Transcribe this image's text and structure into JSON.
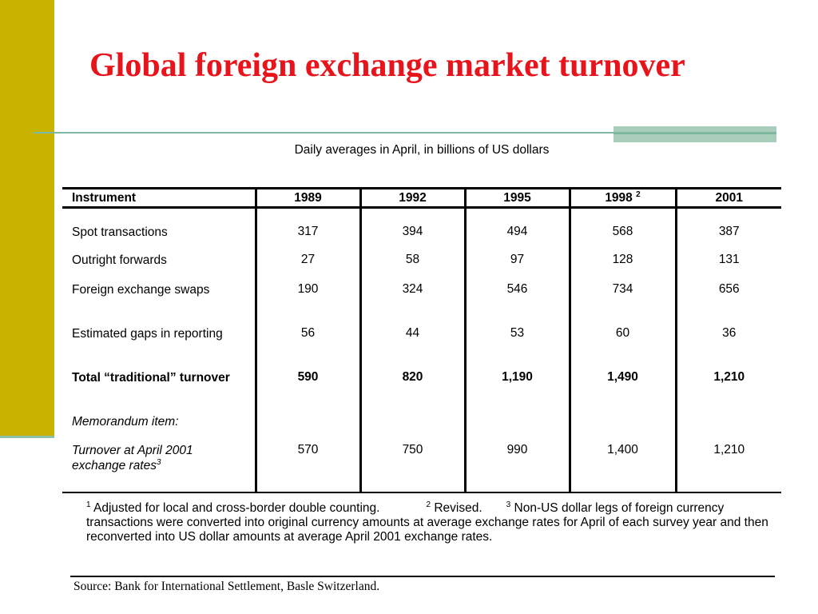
{
  "slide": {
    "title": "Global foreign exchange market turnover",
    "subtitle": "Daily averages in April, in billions of US dollars",
    "accent_color": "#e8141c",
    "bar_color": "#c8b400",
    "rule_color": "#7fb8a0"
  },
  "table": {
    "header": {
      "instrument": "Instrument",
      "years": [
        "1989",
        "1992",
        "1995",
        "1998",
        "2001"
      ],
      "sup_1998": "2"
    },
    "rows": [
      {
        "label": "Spot transactions",
        "values": [
          "317",
          "394",
          "494",
          "568",
          "387"
        ]
      },
      {
        "label": "Outright forwards",
        "values": [
          "27",
          "58",
          "97",
          "128",
          "131"
        ]
      },
      {
        "label": "Foreign exchange swaps",
        "values": [
          "190",
          "324",
          "546",
          "734",
          "656"
        ]
      },
      {
        "label": "Estimated gaps in reporting",
        "values": [
          "56",
          "44",
          "53",
          "60",
          "36"
        ]
      },
      {
        "label": "Total “traditional” turnover",
        "values": [
          "590",
          "820",
          "1,190",
          "1,490",
          "1,210"
        ]
      },
      {
        "label": "Memorandum item:",
        "values": [
          "",
          "",
          "",
          "",
          ""
        ]
      },
      {
        "label": "Turnover at April 2001 exchange rates",
        "sup": "3",
        "values": [
          "570",
          "750",
          "990",
          "1,400",
          "1,210"
        ]
      }
    ]
  },
  "notes": {
    "n1_mark": "1",
    "n1": "Adjusted for local and cross-border double counting.",
    "n2_mark": "2",
    "n2": "Revised.",
    "n3_mark": "3",
    "n3": "Non-US dollar legs of foreign currency transactions were converted into original currency amounts at average exchange rates for April of each survey year and then reconverted into US dollar amounts at average April 2001 exchange rates."
  },
  "source": "Source: Bank for International Settlement, Basle Switzerland."
}
